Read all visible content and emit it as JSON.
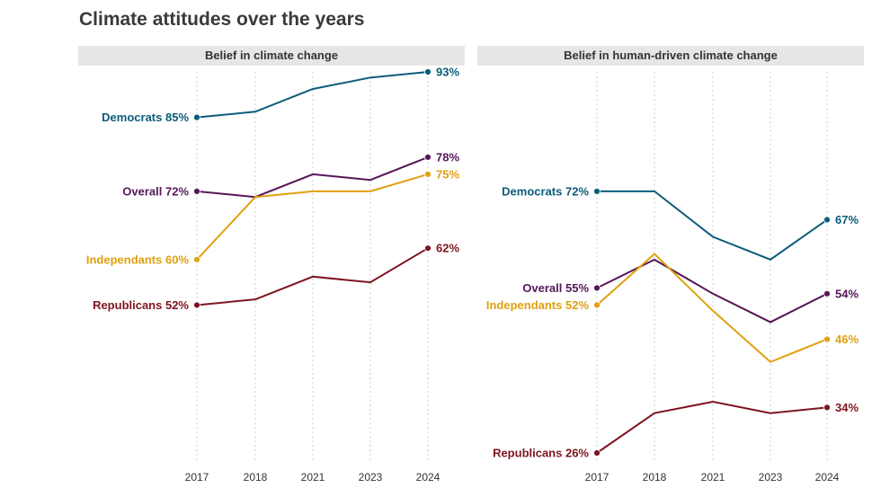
{
  "title": "Climate attitudes over the years",
  "colors": {
    "Democrats": "#0b5c7a",
    "Overall": "#561658",
    "Independants": "#e0a010",
    "Republicans": "#7e1420",
    "grid": "#cccccc",
    "header_bg": "#e6e6e6"
  },
  "chart_data": [
    {
      "type": "line",
      "title": "Belief in climate change",
      "x": [
        2017,
        2018,
        2021,
        2023,
        2024
      ],
      "ylim": [
        20,
        95
      ],
      "grid": "vertical-dotted",
      "series": [
        {
          "name": "Democrats",
          "values": [
            85,
            86,
            90,
            92,
            93
          ],
          "start_label": "Democrats 85%",
          "end_label": "93%"
        },
        {
          "name": "Overall",
          "values": [
            72,
            71,
            75,
            74,
            78
          ],
          "start_label": "Overall 72%",
          "end_label": "78%"
        },
        {
          "name": "Independants",
          "values": [
            60,
            71,
            72,
            72,
            75
          ],
          "start_label": "Independants 60%",
          "end_label": "75%"
        },
        {
          "name": "Republicans",
          "values": [
            52,
            53,
            57,
            56,
            62
          ],
          "start_label": "Republicans 52%",
          "end_label": "62%"
        }
      ]
    },
    {
      "type": "line",
      "title": "Belief in human-driven climate change",
      "x": [
        2017,
        2018,
        2021,
        2023,
        2024
      ],
      "ylim": [
        20,
        95
      ],
      "grid": "vertical-dotted",
      "series": [
        {
          "name": "Democrats",
          "values": [
            72,
            72,
            64,
            60,
            67
          ],
          "start_label": "Democrats 72%",
          "end_label": "67%"
        },
        {
          "name": "Overall",
          "values": [
            55,
            60,
            54,
            49,
            54
          ],
          "start_label": "Overall 55%",
          "end_label": "54%"
        },
        {
          "name": "Independants",
          "values": [
            52,
            61,
            51,
            42,
            46
          ],
          "start_label": "Independants 52%",
          "end_label": "46%"
        },
        {
          "name": "Republicans",
          "values": [
            26,
            33,
            35,
            33,
            34
          ],
          "start_label": "Republicans 26%",
          "end_label": "34%"
        }
      ]
    }
  ]
}
